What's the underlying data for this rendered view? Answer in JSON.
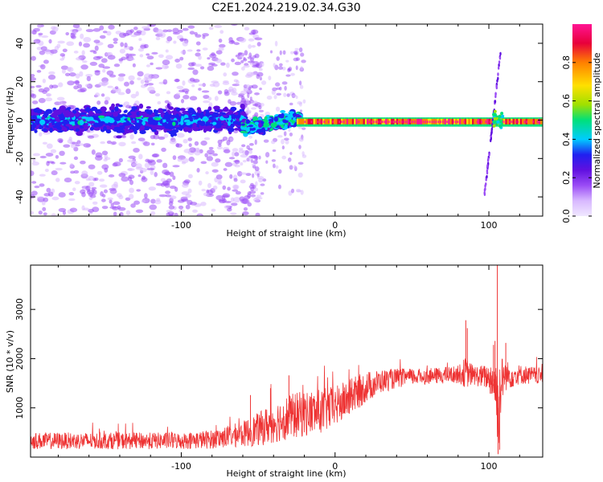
{
  "title": "C2E1.2024.219.02.34.G30",
  "chart_data": [
    {
      "type": "heatmap",
      "xlabel": "Height of straight line (km)",
      "ylabel": "Frequency (Hz)",
      "xlim": [
        -198,
        135
      ],
      "ylim": [
        -50,
        50
      ],
      "x_ticks": [
        -100,
        0,
        100
      ],
      "y_ticks": [
        -40,
        -20,
        0,
        20,
        40
      ],
      "colorbar": {
        "label": "Normalized spectral amplitude",
        "range": [
          0,
          1
        ],
        "ticks": [
          "0.0",
          "0.2",
          "0.4",
          "0.6",
          "0.8"
        ],
        "colors": [
          "#f0e8ff",
          "#d8b8ff",
          "#9a4cf5",
          "#6010e0",
          "#2020f0",
          "#00ccff",
          "#00e07a",
          "#9fe000",
          "#ffe000",
          "#ff8000",
          "#e8003a",
          "#ff1493"
        ]
      },
      "regions": [
        {
          "x_range": [
            -198,
            -60
          ],
          "freq_center": 0,
          "freq_half_width": 8,
          "amplitude": 0.2,
          "noise_spread": 50
        },
        {
          "x_range": [
            -60,
            -25
          ],
          "freq_center_range": [
            -5,
            2
          ],
          "freq_half_width": 5,
          "amplitude": 0.35
        },
        {
          "x_range": [
            -25,
            110
          ],
          "freq_center": -1,
          "freq_half_width": 2.5,
          "amplitude": 0.85
        },
        {
          "x_range": [
            95,
            110
          ],
          "feature": "tilted streak",
          "freq_range": [
            -40,
            38
          ]
        }
      ]
    },
    {
      "type": "line",
      "xlabel": "Height of straight line (km)",
      "ylabel": "SNR (10 * v/v)",
      "xlim": [
        -198,
        135
      ],
      "ylim": [
        0,
        3900
      ],
      "x_ticks": [
        -100,
        0,
        100
      ],
      "y_ticks": [
        1000,
        2000,
        3000
      ],
      "color": "#ee3333",
      "envelope": {
        "x": [
          -198,
          -150,
          -100,
          -80,
          -60,
          -50,
          -40,
          -30,
          -20,
          -10,
          0,
          10,
          20,
          30,
          40,
          50,
          60,
          70,
          80,
          85,
          90,
          100,
          104,
          106,
          108,
          110,
          120,
          135
        ],
        "mean": [
          330,
          330,
          330,
          360,
          470,
          560,
          700,
          820,
          880,
          920,
          1020,
          1220,
          1420,
          1540,
          1600,
          1630,
          1640,
          1660,
          1680,
          1720,
          1660,
          1620,
          1500,
          1000,
          1500,
          1650,
          1680,
          1640
        ],
        "amp": [
          170,
          170,
          170,
          190,
          260,
          340,
          420,
          460,
          470,
          460,
          420,
          380,
          320,
          240,
          200,
          170,
          160,
          170,
          180,
          320,
          200,
          260,
          600,
          900,
          600,
          320,
          200,
          170
        ]
      },
      "spikes": [
        {
          "x": -55,
          "y": 1260
        },
        {
          "x": -42,
          "y": 1400
        },
        {
          "x": -30,
          "y": 1660
        },
        {
          "x": 85,
          "y": 2780
        },
        {
          "x": 86,
          "y": 2620
        },
        {
          "x": 103,
          "y": 2280
        },
        {
          "x": 104,
          "y": 2360
        },
        {
          "x": 105.5,
          "y": 3900
        },
        {
          "x": 106,
          "y": 60
        },
        {
          "x": 107,
          "y": 150
        },
        {
          "x": 111,
          "y": 2320
        }
      ]
    }
  ]
}
